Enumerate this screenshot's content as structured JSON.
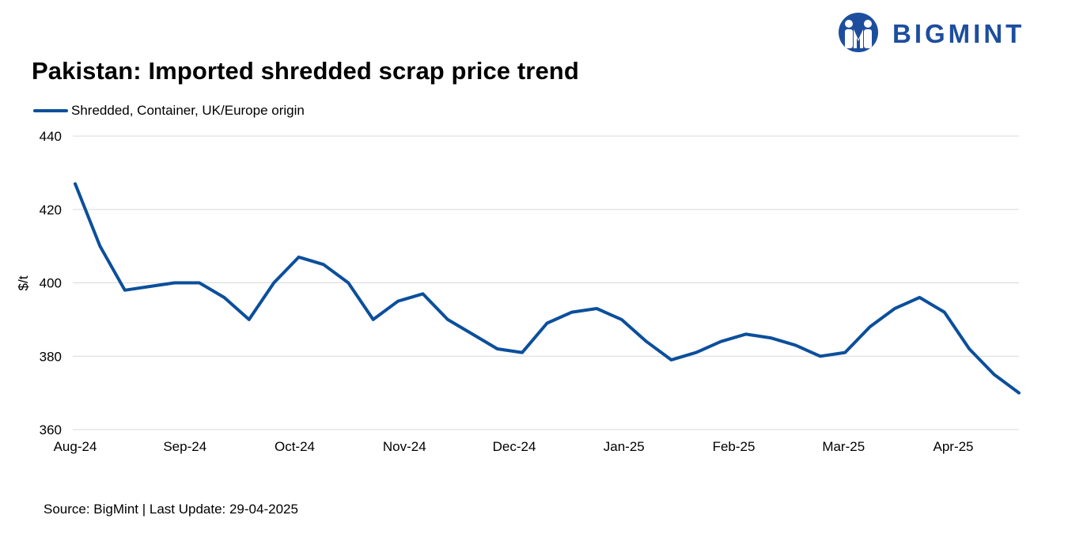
{
  "title": "Pakistan: Imported shredded scrap price trend",
  "brand": {
    "name": "BIGMINT",
    "logo_icon": "bigmint-people-icon",
    "color": "#1d4e9e"
  },
  "source_text": "Source: BigMint | Last Update: 29-04-2025",
  "chart_data": {
    "type": "line",
    "title": "Pakistan: Imported shredded scrap price trend",
    "xlabel": "",
    "ylabel": "$/t",
    "ylim": [
      360,
      440
    ],
    "yticks": [
      360,
      380,
      400,
      420,
      440
    ],
    "x_tick_labels": [
      "Aug-24",
      "Sep-24",
      "Oct-24",
      "Nov-24",
      "Dec-24",
      "Jan-25",
      "Feb-25",
      "Mar-25",
      "Apr-25"
    ],
    "grid": true,
    "legend_position": "top-left",
    "series": [
      {
        "name": "Shredded, Container, UK/Europe origin",
        "color": "#0b4f9c",
        "values": [
          427,
          410,
          398,
          399,
          400,
          400,
          396,
          390,
          400,
          407,
          405,
          400,
          390,
          395,
          397,
          390,
          386,
          382,
          381,
          389,
          392,
          393,
          390,
          384,
          379,
          381,
          384,
          386,
          385,
          383,
          380,
          381,
          388,
          393,
          396,
          392,
          382,
          375,
          370
        ]
      }
    ]
  }
}
